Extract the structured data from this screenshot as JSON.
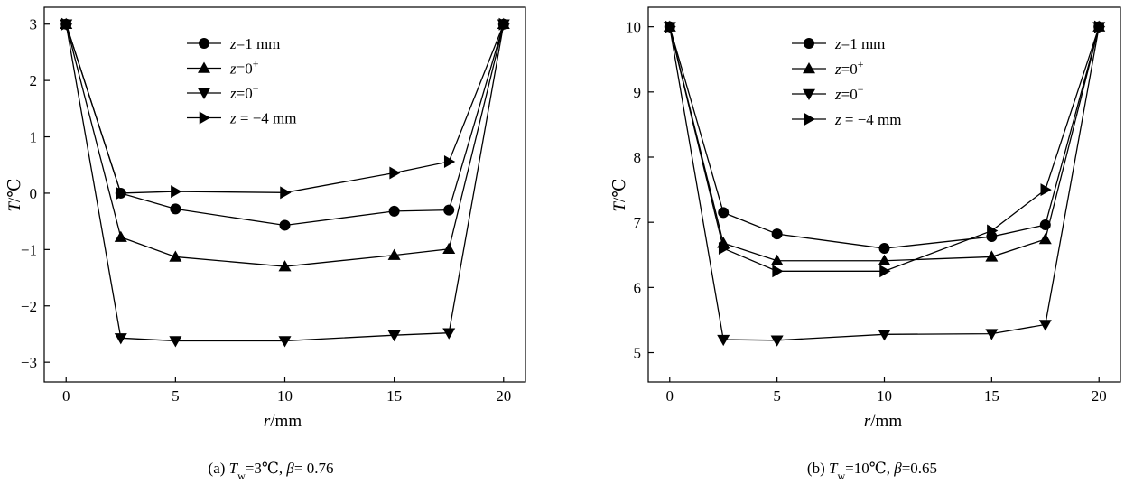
{
  "chart_data": [
    {
      "type": "line",
      "caption": "(a)  T_w=3℃, β= 0.76",
      "caption_parts": {
        "prefix": "(a)  ",
        "var": "T",
        "sub": "w",
        "mid": "=3℃, ",
        "beta": "β",
        "tail": "= 0.76"
      },
      "xlabel": {
        "var": "r",
        "unit": "/mm"
      },
      "ylabel": {
        "var": "T",
        "unit": "/℃"
      },
      "xlim": [
        -1,
        21
      ],
      "ylim": [
        -3.35,
        3.3
      ],
      "xticks": [
        0,
        5,
        10,
        15,
        20
      ],
      "xtick_labels": [
        "0",
        "5",
        "10",
        "15",
        "20"
      ],
      "yticks": [
        -3,
        -2,
        -1,
        0,
        1,
        2,
        3
      ],
      "ytick_labels": [
        "−3",
        "−2",
        "−1",
        "0",
        "1",
        "2",
        "3"
      ],
      "x": [
        0,
        2.5,
        5,
        10,
        15,
        17.5,
        20
      ],
      "series": [
        {
          "name": "z=1 mm",
          "label_var": "z",
          "label_rest": "=1 mm",
          "marker": "circle",
          "values": [
            3.0,
            0.0,
            -0.28,
            -0.57,
            -0.32,
            -0.3,
            3.0
          ]
        },
        {
          "name": "z=0+",
          "label_var": "z",
          "label_rest": "=0",
          "label_sup": "+",
          "marker": "triangle-up",
          "values": [
            3.0,
            -0.78,
            -1.13,
            -1.3,
            -1.1,
            -0.99,
            3.0
          ]
        },
        {
          "name": "z=0−",
          "label_var": "z",
          "label_rest": "=0",
          "label_sup": "−",
          "marker": "triangle-down",
          "values": [
            3.0,
            -2.57,
            -2.62,
            -2.62,
            -2.52,
            -2.48,
            3.0
          ]
        },
        {
          "name": "z = −4 mm",
          "label_var": "z",
          "label_rest": " = −4 mm",
          "marker": "triangle-right",
          "values": [
            3.0,
            0.0,
            0.03,
            0.01,
            0.36,
            0.56,
            3.0
          ]
        }
      ]
    },
    {
      "type": "line",
      "caption": "(b) T_w=10℃, β=0.65",
      "caption_parts": {
        "prefix": "(b) ",
        "var": "T",
        "sub": "w",
        "mid": "=10℃, ",
        "beta": "β",
        "tail": "=0.65"
      },
      "xlabel": {
        "var": "r",
        "unit": "/mm"
      },
      "ylabel": {
        "var": "T",
        "unit": "/℃"
      },
      "xlim": [
        -1,
        21
      ],
      "ylim": [
        4.55,
        10.3
      ],
      "xticks": [
        0,
        5,
        10,
        15,
        20
      ],
      "xtick_labels": [
        "0",
        "5",
        "10",
        "15",
        "20"
      ],
      "yticks": [
        5,
        6,
        7,
        8,
        9,
        10
      ],
      "ytick_labels": [
        "5",
        "6",
        "7",
        "8",
        "9",
        "10"
      ],
      "x": [
        0,
        2.5,
        5,
        10,
        15,
        17.5,
        20
      ],
      "series": [
        {
          "name": "z=1 mm",
          "label_var": "z",
          "label_rest": "=1 mm",
          "marker": "circle",
          "values": [
            10.0,
            7.15,
            6.82,
            6.6,
            6.78,
            6.96,
            10.0
          ]
        },
        {
          "name": "z=0+",
          "label_var": "z",
          "label_rest": "=0",
          "label_sup": "+",
          "marker": "triangle-up",
          "values": [
            10.0,
            6.68,
            6.41,
            6.41,
            6.47,
            6.74,
            10.0
          ]
        },
        {
          "name": "z=0−",
          "label_var": "z",
          "label_rest": "=0",
          "label_sup": "−",
          "marker": "triangle-down",
          "values": [
            10.0,
            5.2,
            5.19,
            5.28,
            5.29,
            5.43,
            10.0
          ]
        },
        {
          "name": "z = −4 mm",
          "label_var": "z",
          "label_rest": " = −4 mm",
          "marker": "triangle-right",
          "values": [
            10.0,
            6.6,
            6.25,
            6.25,
            6.87,
            7.5,
            10.0
          ]
        }
      ]
    }
  ]
}
